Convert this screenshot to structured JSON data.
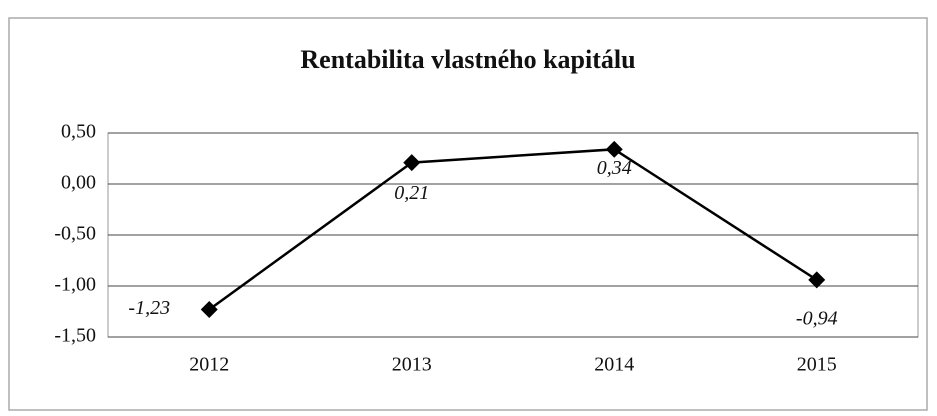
{
  "chart_data": {
    "type": "line",
    "title": "Rentabilita vlastného kapitálu",
    "categories": [
      "2012",
      "2013",
      "2014",
      "2015"
    ],
    "series": [
      {
        "name": "Rentabilita vlastného kapitálu",
        "color": "#000000",
        "values": [
          -1.23,
          0.21,
          0.34,
          -0.94
        ],
        "value_labels": [
          "-1,23",
          "0,21",
          "0,34",
          "-0,94"
        ]
      }
    ],
    "ylim": [
      -1.5,
      0.5
    ],
    "yticks": [
      {
        "value": 0.5,
        "label": "0,50"
      },
      {
        "value": 0,
        "label": "0,00"
      },
      {
        "value": -0.5,
        "label": "-0,50"
      },
      {
        "value": -1,
        "label": "-1,00"
      },
      {
        "value": -1.5,
        "label": "-1,50"
      }
    ],
    "grid": true
  }
}
